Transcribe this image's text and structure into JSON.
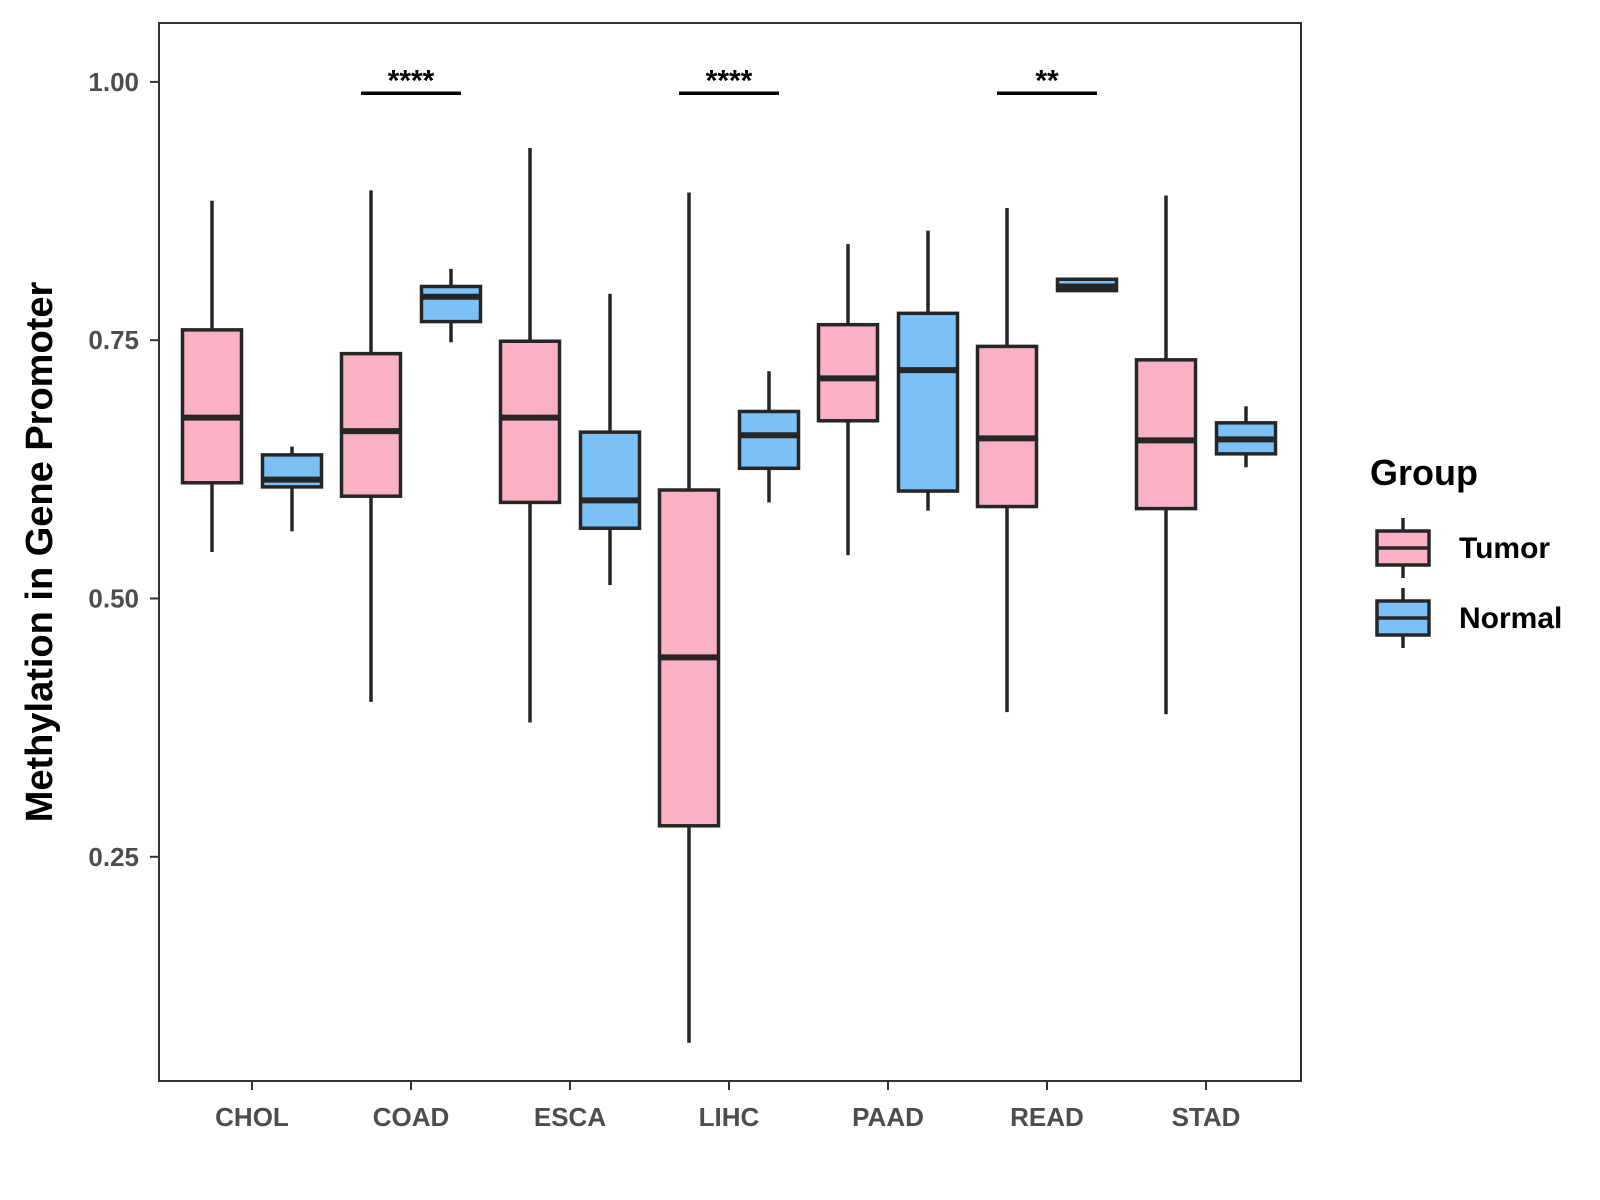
{
  "colors": {
    "tumor": "#FBB1C4",
    "normal": "#7BC1F7",
    "outline": "#262626",
    "panel_border": "#333333",
    "tick_text": "#4d4d4d"
  },
  "chart_data": {
    "type": "boxplot",
    "title": "",
    "xlabel": "",
    "ylabel": "Methylation in Gene Promoter",
    "ylim": [
      0.033,
      1.057
    ],
    "y_ticks": [
      0.25,
      0.5,
      0.75,
      1.0
    ],
    "y_tick_labels": [
      "0.25",
      "0.50",
      "0.75",
      "1.00"
    ],
    "categories": [
      "CHOL",
      "COAD",
      "ESCA",
      "LIHC",
      "PAAD",
      "READ",
      "STAD"
    ],
    "legend": {
      "title": "Group",
      "position": "right",
      "entries": [
        {
          "key": "Tumor",
          "label": "Tumor"
        },
        {
          "key": "Normal",
          "label": "Normal"
        }
      ]
    },
    "series": [
      {
        "name": "Tumor",
        "boxes": [
          {
            "category": "CHOL",
            "min": 0.545,
            "q1": 0.612,
            "median": 0.675,
            "q3": 0.76,
            "max": 0.885
          },
          {
            "category": "COAD",
            "min": 0.4,
            "q1": 0.599,
            "median": 0.662,
            "q3": 0.737,
            "max": 0.895
          },
          {
            "category": "ESCA",
            "min": 0.38,
            "q1": 0.593,
            "median": 0.675,
            "q3": 0.749,
            "max": 0.936
          },
          {
            "category": "LIHC",
            "min": 0.07,
            "q1": 0.28,
            "median": 0.443,
            "q3": 0.605,
            "max": 0.893
          },
          {
            "category": "PAAD",
            "min": 0.542,
            "q1": 0.672,
            "median": 0.713,
            "q3": 0.765,
            "max": 0.843
          },
          {
            "category": "READ",
            "min": 0.39,
            "q1": 0.589,
            "median": 0.655,
            "q3": 0.744,
            "max": 0.878
          },
          {
            "category": "STAD",
            "min": 0.388,
            "q1": 0.587,
            "median": 0.653,
            "q3": 0.731,
            "max": 0.89
          }
        ]
      },
      {
        "name": "Normal",
        "boxes": [
          {
            "category": "CHOL",
            "min": 0.565,
            "q1": 0.608,
            "median": 0.615,
            "q3": 0.639,
            "max": 0.647
          },
          {
            "category": "COAD",
            "min": 0.748,
            "q1": 0.768,
            "median": 0.792,
            "q3": 0.802,
            "max": 0.819
          },
          {
            "category": "ESCA",
            "min": 0.513,
            "q1": 0.568,
            "median": 0.595,
            "q3": 0.661,
            "max": 0.795
          },
          {
            "category": "LIHC",
            "min": 0.593,
            "q1": 0.626,
            "median": 0.658,
            "q3": 0.681,
            "max": 0.72
          },
          {
            "category": "PAAD",
            "min": 0.585,
            "q1": 0.604,
            "median": 0.721,
            "q3": 0.776,
            "max": 0.856
          },
          {
            "category": "READ",
            "min": 0.797,
            "q1": 0.798,
            "median": 0.802,
            "q3": 0.809,
            "max": 0.81
          },
          {
            "category": "STAD",
            "min": 0.627,
            "q1": 0.64,
            "median": 0.654,
            "q3": 0.67,
            "max": 0.686
          }
        ]
      }
    ],
    "significance": [
      {
        "category": "COAD",
        "label": "****",
        "y": 0.989
      },
      {
        "category": "LIHC",
        "label": "****",
        "y": 0.989
      },
      {
        "category": "READ",
        "label": "**",
        "y": 0.989
      }
    ]
  }
}
